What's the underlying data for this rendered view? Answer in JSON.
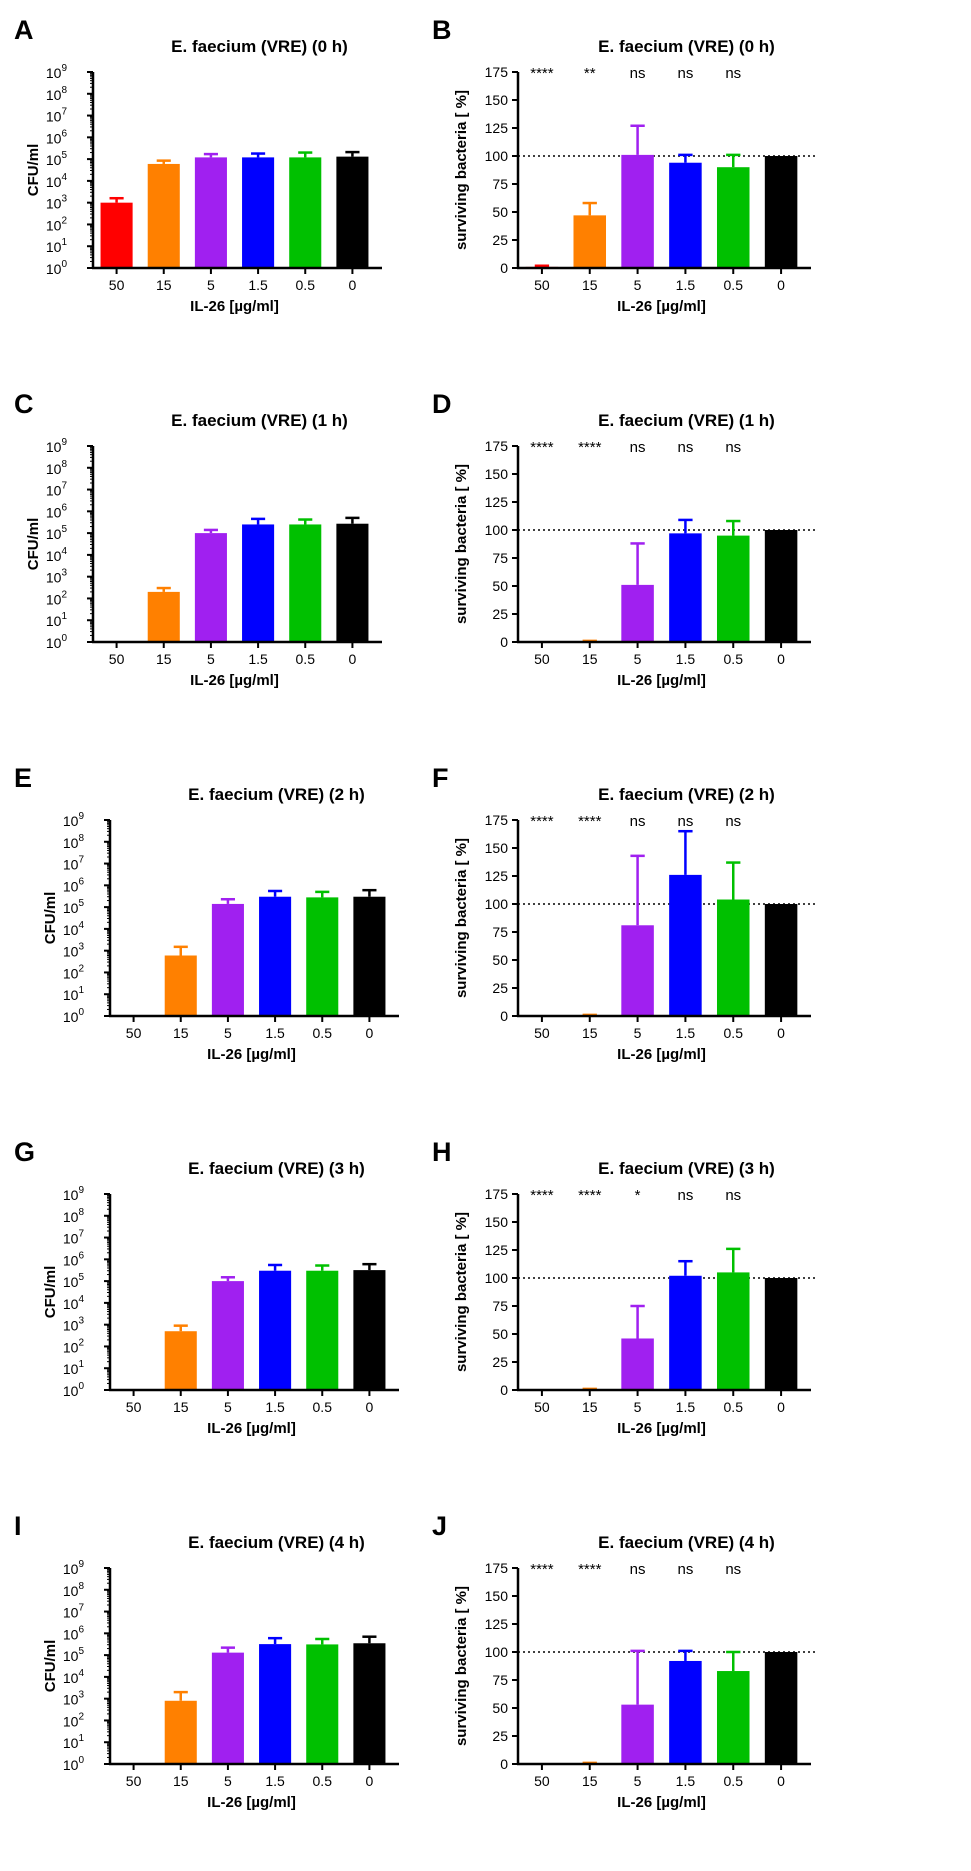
{
  "figure": {
    "x_categories": [
      "50",
      "15",
      "5",
      "1.5",
      "0.5",
      "0"
    ],
    "bar_colors": [
      "#ff0000",
      "#ff8000",
      "#a020f0",
      "#0000ff",
      "#00c000",
      "#000000"
    ],
    "reference_line_color": "#000000"
  },
  "chart_data": [
    {
      "panel_letter": "A",
      "type": "bar",
      "scale": "log",
      "title": "E. faecium (VRE) (0 h)",
      "xlabel": "IL-26 [µg/ml]",
      "ylabel": "CFU/ml",
      "ylim_exp": [
        0,
        9
      ],
      "yticks_exp": [
        0,
        1,
        2,
        3,
        4,
        5,
        6,
        7,
        8,
        9
      ],
      "categories": [
        "50",
        "15",
        "5",
        "1.5",
        "0.5",
        "0"
      ],
      "values": [
        1000,
        60000,
        120000,
        120000,
        120000,
        130000
      ],
      "errors_upper": [
        1600,
        85000,
        170000,
        180000,
        200000,
        210000
      ]
    },
    {
      "panel_letter": "B",
      "type": "bar",
      "scale": "linear",
      "title": "E. faecium (VRE) (0 h)",
      "xlabel": "IL-26 [µg/ml]",
      "ylabel": "surviving bacteria [ %]",
      "ylim": [
        0,
        175
      ],
      "yticks": [
        0,
        25,
        50,
        75,
        100,
        125,
        150,
        175
      ],
      "reference_line": 100,
      "categories": [
        "50",
        "15",
        "5",
        "1.5",
        "0.5",
        "0"
      ],
      "values": [
        1,
        47,
        101,
        94,
        90,
        100
      ],
      "errors_upper": [
        2,
        58,
        127,
        101,
        101,
        100
      ],
      "significance": [
        "****",
        "**",
        "ns",
        "ns",
        "ns",
        ""
      ]
    },
    {
      "panel_letter": "C",
      "type": "bar",
      "scale": "log",
      "title": "E. faecium (VRE) (1 h)",
      "xlabel": "IL-26 [µg/ml]",
      "ylabel": "CFU/ml",
      "ylim_exp": [
        0,
        9
      ],
      "yticks_exp": [
        0,
        1,
        2,
        3,
        4,
        5,
        6,
        7,
        8,
        9
      ],
      "categories": [
        "50",
        "15",
        "5",
        "1.5",
        "0.5",
        "0"
      ],
      "values": [
        1,
        200,
        100000,
        250000,
        250000,
        270000
      ],
      "errors_upper": [
        1,
        300,
        140000,
        450000,
        420000,
        500000
      ]
    },
    {
      "panel_letter": "D",
      "type": "bar",
      "scale": "linear",
      "title": "E. faecium (VRE) (1 h)",
      "xlabel": "IL-26 [µg/ml]",
      "ylabel": "surviving bacteria [ %]",
      "ylim": [
        0,
        175
      ],
      "yticks": [
        0,
        25,
        50,
        75,
        100,
        125,
        150,
        175
      ],
      "reference_line": 100,
      "categories": [
        "50",
        "15",
        "5",
        "1.5",
        "0.5",
        "0"
      ],
      "values": [
        0,
        0.5,
        51,
        97,
        95,
        100
      ],
      "errors_upper": [
        0,
        1,
        88,
        109,
        108,
        100
      ],
      "significance": [
        "****",
        "****",
        "ns",
        "ns",
        "ns",
        ""
      ]
    },
    {
      "panel_letter": "E",
      "type": "bar",
      "scale": "log",
      "title": "E. faecium (VRE) (2 h)",
      "xlabel": "IL-26 [µg/ml]",
      "ylabel": "CFU/ml",
      "ylim_exp": [
        0,
        9
      ],
      "yticks_exp": [
        0,
        1,
        2,
        3,
        4,
        5,
        6,
        7,
        8,
        9
      ],
      "categories": [
        "50",
        "15",
        "5",
        "1.5",
        "0.5",
        "0"
      ],
      "values": [
        1,
        600,
        140000,
        300000,
        280000,
        300000
      ],
      "errors_upper": [
        1,
        1500,
        230000,
        550000,
        500000,
        600000
      ]
    },
    {
      "panel_letter": "F",
      "type": "bar",
      "scale": "linear",
      "title": "E. faecium (VRE) (2 h)",
      "xlabel": "IL-26 [µg/ml]",
      "ylabel": "surviving bacteria [ %]",
      "ylim": [
        0,
        175
      ],
      "yticks": [
        0,
        25,
        50,
        75,
        100,
        125,
        150,
        175
      ],
      "reference_line": 100,
      "categories": [
        "50",
        "15",
        "5",
        "1.5",
        "0.5",
        "0"
      ],
      "values": [
        0,
        0.5,
        81,
        126,
        104,
        100
      ],
      "errors_upper": [
        0,
        1,
        143,
        165,
        137,
        100
      ],
      "significance": [
        "****",
        "****",
        "ns",
        "ns",
        "ns",
        ""
      ]
    },
    {
      "panel_letter": "G",
      "type": "bar",
      "scale": "log",
      "title": "E. faecium (VRE) (3 h)",
      "xlabel": "IL-26 [µg/ml]",
      "ylabel": "CFU/ml",
      "ylim_exp": [
        0,
        9
      ],
      "yticks_exp": [
        0,
        1,
        2,
        3,
        4,
        5,
        6,
        7,
        8,
        9
      ],
      "categories": [
        "50",
        "15",
        "5",
        "1.5",
        "0.5",
        "0"
      ],
      "values": [
        1,
        500,
        100000,
        300000,
        300000,
        320000
      ],
      "errors_upper": [
        1,
        900,
        150000,
        550000,
        520000,
        600000
      ]
    },
    {
      "panel_letter": "H",
      "type": "bar",
      "scale": "linear",
      "title": "E. faecium (VRE) (3 h)",
      "xlabel": "IL-26 [µg/ml]",
      "ylabel": "surviving bacteria [ %]",
      "ylim": [
        0,
        175
      ],
      "yticks": [
        0,
        25,
        50,
        75,
        100,
        125,
        150,
        175
      ],
      "reference_line": 100,
      "categories": [
        "50",
        "15",
        "5",
        "1.5",
        "0.5",
        "0"
      ],
      "values": [
        0,
        0.5,
        46,
        102,
        105,
        100
      ],
      "errors_upper": [
        0,
        1,
        75,
        115,
        126,
        100
      ],
      "significance": [
        "****",
        "****",
        "*",
        "ns",
        "ns",
        ""
      ]
    },
    {
      "panel_letter": "I",
      "type": "bar",
      "scale": "log",
      "title": "E. faecium (VRE) (4 h)",
      "xlabel": "IL-26 [µg/ml]",
      "ylabel": "CFU/ml",
      "ylim_exp": [
        0,
        9
      ],
      "yticks_exp": [
        0,
        1,
        2,
        3,
        4,
        5,
        6,
        7,
        8,
        9
      ],
      "categories": [
        "50",
        "15",
        "5",
        "1.5",
        "0.5",
        "0"
      ],
      "values": [
        1,
        800,
        130000,
        320000,
        310000,
        350000
      ],
      "errors_upper": [
        1,
        2000,
        220000,
        600000,
        550000,
        700000
      ]
    },
    {
      "panel_letter": "J",
      "type": "bar",
      "scale": "linear",
      "title": "E. faecium (VRE) (4 h)",
      "xlabel": "IL-26 [µg/ml]",
      "ylabel": "surviving bacteria [ %]",
      "ylim": [
        0,
        175
      ],
      "yticks": [
        0,
        25,
        50,
        75,
        100,
        125,
        150,
        175
      ],
      "reference_line": 100,
      "categories": [
        "50",
        "15",
        "5",
        "1.5",
        "0.5",
        "0"
      ],
      "values": [
        0,
        0.5,
        53,
        92,
        83,
        100
      ],
      "errors_upper": [
        0,
        1,
        101,
        101,
        100,
        100
      ],
      "significance": [
        "****",
        "****",
        "ns",
        "ns",
        "ns",
        ""
      ]
    }
  ]
}
